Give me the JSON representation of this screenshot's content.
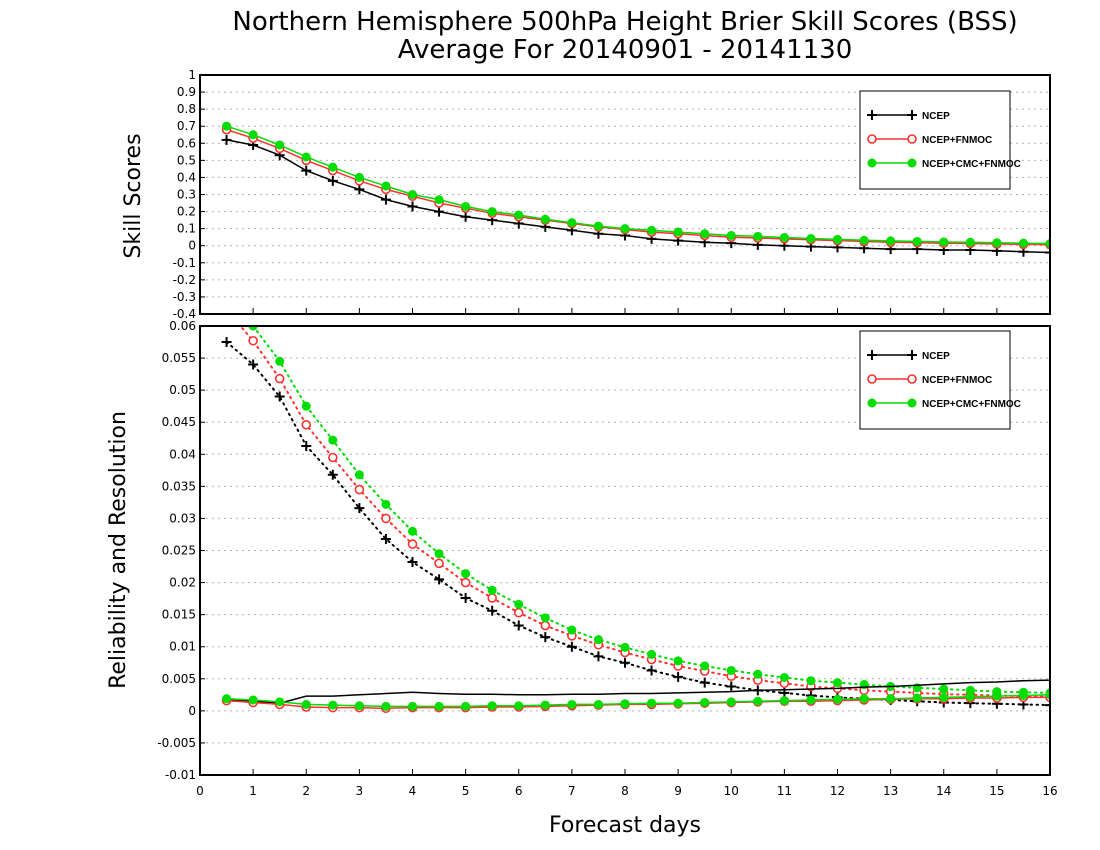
{
  "title_line1": "Northern Hemisphere 500hPa Height Brier Skill Scores (BSS)",
  "title_line2": "Average For 20140901 - 20141130",
  "xlabel": "Forecast days",
  "colors": {
    "NCEP": "#000000",
    "NCEP+FNMOC": "#ff3030",
    "NCEP+CMC+FNMOC": "#00dd00"
  },
  "chart_data": [
    {
      "type": "line",
      "ylabel": "Skill Scores",
      "xlim": [
        0,
        16
      ],
      "ylim": [
        -0.4,
        1
      ],
      "xticks": [
        "0",
        "1",
        "2",
        "3",
        "4",
        "5",
        "6",
        "7",
        "8",
        "9",
        "10",
        "11",
        "12",
        "13",
        "14",
        "15",
        "16"
      ],
      "yticks": [
        "-0.4",
        "-0.3",
        "-0.2",
        "-0.1",
        "0",
        "0.1",
        "0.2",
        "0.3",
        "0.4",
        "0.5",
        "0.6",
        "0.7",
        "0.8",
        "0.9",
        "1"
      ],
      "grid": true,
      "legend_position": "top-right",
      "x": [
        0.5,
        1,
        1.5,
        2,
        2.5,
        3,
        3.5,
        4,
        4.5,
        5,
        5.5,
        6,
        6.5,
        7,
        7.5,
        8,
        8.5,
        9,
        9.5,
        10,
        10.5,
        11,
        11.5,
        12,
        12.5,
        13,
        13.5,
        14,
        14.5,
        15,
        15.5,
        16
      ],
      "series": [
        {
          "name": "NCEP",
          "marker": "plus",
          "style": "solid",
          "values": [
            0.62,
            0.59,
            0.53,
            0.44,
            0.38,
            0.33,
            0.27,
            0.23,
            0.2,
            0.17,
            0.15,
            0.13,
            0.11,
            0.09,
            0.07,
            0.06,
            0.04,
            0.03,
            0.02,
            0.015,
            0.005,
            0,
            -0.005,
            -0.01,
            -0.015,
            -0.02,
            -0.02,
            -0.025,
            -0.025,
            -0.03,
            -0.035,
            -0.04
          ]
        },
        {
          "name": "NCEP+FNMOC",
          "marker": "open-circle",
          "style": "solid",
          "values": [
            0.68,
            0.63,
            0.57,
            0.5,
            0.44,
            0.38,
            0.33,
            0.29,
            0.25,
            0.22,
            0.19,
            0.17,
            0.15,
            0.13,
            0.11,
            0.095,
            0.08,
            0.07,
            0.06,
            0.05,
            0.045,
            0.04,
            0.035,
            0.03,
            0.025,
            0.02,
            0.018,
            0.015,
            0.013,
            0.01,
            0.008,
            0.006
          ]
        },
        {
          "name": "NCEP+CMC+FNMOC",
          "marker": "filled-circle",
          "style": "solid",
          "values": [
            0.7,
            0.65,
            0.59,
            0.52,
            0.46,
            0.4,
            0.35,
            0.3,
            0.27,
            0.23,
            0.2,
            0.18,
            0.155,
            0.135,
            0.115,
            0.1,
            0.09,
            0.08,
            0.07,
            0.06,
            0.055,
            0.048,
            0.042,
            0.037,
            0.032,
            0.028,
            0.025,
            0.022,
            0.02,
            0.017,
            0.015,
            0.013
          ]
        }
      ]
    },
    {
      "type": "line",
      "ylabel": "Reliability and Resolution",
      "xlabel": "Forecast days",
      "xlim": [
        0,
        16
      ],
      "ylim": [
        -0.01,
        0.06
      ],
      "xticks": [
        "0",
        "1",
        "2",
        "3",
        "4",
        "5",
        "6",
        "7",
        "8",
        "9",
        "10",
        "11",
        "12",
        "13",
        "14",
        "15",
        "16"
      ],
      "yticks": [
        "-0.01",
        "-0.005",
        "0",
        "0.005",
        "0.01",
        "0.015",
        "0.02",
        "0.025",
        "0.03",
        "0.035",
        "0.04",
        "0.045",
        "0.05",
        "0.055",
        "0.06"
      ],
      "grid": true,
      "legend_position": "top-right",
      "x": [
        0.5,
        1,
        1.5,
        2,
        2.5,
        3,
        3.5,
        4,
        4.5,
        5,
        5.5,
        6,
        6.5,
        7,
        7.5,
        8,
        8.5,
        9,
        9.5,
        10,
        10.5,
        11,
        11.5,
        12,
        12.5,
        13,
        13.5,
        14,
        14.5,
        15,
        15.5,
        16
      ],
      "series": [
        {
          "name": "NCEP",
          "component": "resolution",
          "marker": "plus",
          "style": "dotted",
          "values": [
            0.0575,
            0.054,
            0.049,
            0.0413,
            0.0368,
            0.0316,
            0.0268,
            0.0232,
            0.0205,
            0.0176,
            0.0156,
            0.0133,
            0.0115,
            0.01,
            0.0085,
            0.0075,
            0.0063,
            0.0053,
            0.0044,
            0.0038,
            0.0032,
            0.0028,
            0.0024,
            0.0021,
            0.0019,
            0.0017,
            0.0015,
            0.0013,
            0.0012,
            0.0011,
            0.001,
            0.0009
          ]
        },
        {
          "name": "NCEP+FNMOC",
          "component": "resolution",
          "marker": "open-circle",
          "style": "dotted",
          "values": [
            0.0625,
            0.0577,
            0.0518,
            0.0446,
            0.0395,
            0.0345,
            0.03,
            0.026,
            0.023,
            0.02,
            0.0176,
            0.0153,
            0.0133,
            0.0117,
            0.0103,
            0.0091,
            0.008,
            0.007,
            0.0062,
            0.0054,
            0.0048,
            0.0043,
            0.0038,
            0.0035,
            0.0032,
            0.003,
            0.0028,
            0.0026,
            0.0025,
            0.0024,
            0.0023,
            0.0022
          ]
        },
        {
          "name": "NCEP+CMC+FNMOC",
          "component": "resolution",
          "marker": "filled-circle",
          "style": "dotted",
          "values": [
            0.065,
            0.06,
            0.0545,
            0.0475,
            0.0422,
            0.0368,
            0.0322,
            0.028,
            0.0245,
            0.0214,
            0.0188,
            0.0166,
            0.0145,
            0.0126,
            0.0111,
            0.0099,
            0.0088,
            0.0078,
            0.007,
            0.0063,
            0.0057,
            0.0052,
            0.0047,
            0.0044,
            0.0041,
            0.0038,
            0.0036,
            0.0034,
            0.0032,
            0.003,
            0.0029,
            0.0028
          ]
        },
        {
          "name": "NCEP",
          "component": "reliability",
          "marker": "none",
          "style": "solid",
          "values": [
            0.0018,
            0.0015,
            0.0012,
            0.0023,
            0.0023,
            0.0025,
            0.0027,
            0.0029,
            0.0027,
            0.0026,
            0.0026,
            0.0025,
            0.0025,
            0.0026,
            0.0026,
            0.0027,
            0.0027,
            0.0028,
            0.0029,
            0.003,
            0.0032,
            0.0033,
            0.0034,
            0.0035,
            0.0037,
            0.0038,
            0.004,
            0.0042,
            0.0044,
            0.0045,
            0.0047,
            0.0048
          ]
        },
        {
          "name": "NCEP+FNMOC",
          "component": "reliability",
          "marker": "open-circle",
          "style": "solid",
          "values": [
            0.0016,
            0.0013,
            0.001,
            0.0006,
            0.0005,
            0.0005,
            0.0004,
            0.0005,
            0.0005,
            0.0005,
            0.0006,
            0.0006,
            0.0007,
            0.0008,
            0.0009,
            0.001,
            0.001,
            0.0011,
            0.0012,
            0.0013,
            0.0014,
            0.0015,
            0.0015,
            0.0016,
            0.0017,
            0.0018,
            0.0019,
            0.0019,
            0.002,
            0.002,
            0.0021,
            0.0021
          ]
        },
        {
          "name": "NCEP+CMC+FNMOC",
          "component": "reliability",
          "marker": "filled-circle",
          "style": "solid",
          "values": [
            0.0019,
            0.0017,
            0.0014,
            0.001,
            0.0009,
            0.0008,
            0.0007,
            0.0007,
            0.0007,
            0.0007,
            0.0008,
            0.0008,
            0.0009,
            0.001,
            0.001,
            0.0011,
            0.0012,
            0.0012,
            0.0013,
            0.0014,
            0.0015,
            0.0016,
            0.0017,
            0.0018,
            0.0019,
            0.0019,
            0.002,
            0.0021,
            0.0022,
            0.0023,
            0.0024,
            0.0025
          ]
        }
      ]
    }
  ]
}
